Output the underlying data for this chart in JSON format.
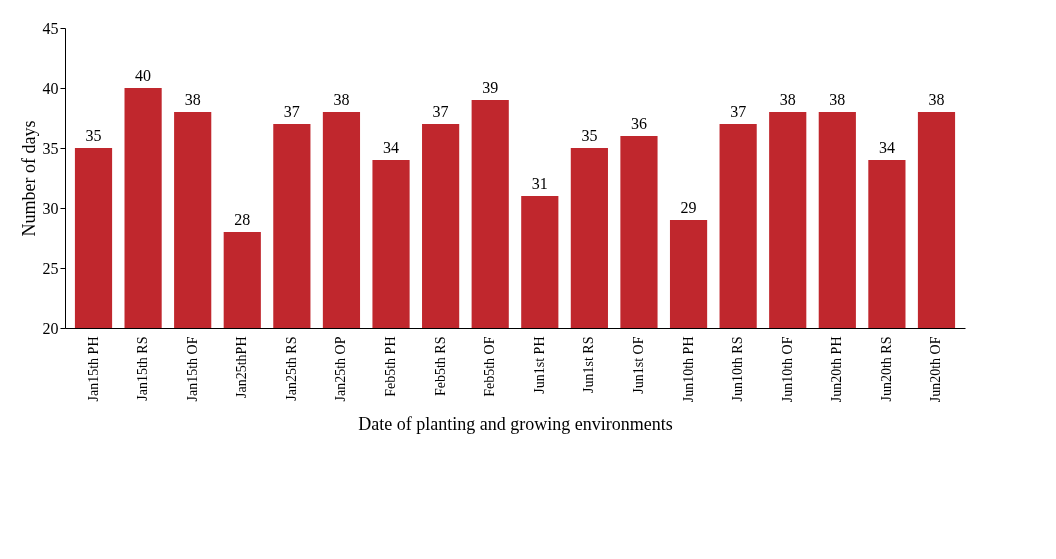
{
  "chart_data": {
    "type": "bar",
    "xlabel": "Date of planting and growing environments",
    "ylabel": "Number of days",
    "categories": [
      "Jan15th PH",
      "Jan15th RS",
      "Jan15th OF",
      "Jan25thPH",
      "Jan25th RS",
      "Jan25th OP",
      "Feb5th PH",
      "Feb5th RS",
      "Feb5th OF",
      "Jun1st PH",
      "Jun1st RS",
      "Jun1st OF",
      "Jun10th PH",
      "Jun10th RS",
      "Jun10th OF",
      "Jun20th PH",
      "Jun20th RS",
      "Jun20th OF"
    ],
    "values": [
      35,
      40,
      38,
      28,
      37,
      38,
      34,
      37,
      39,
      31,
      35,
      36,
      29,
      37,
      38,
      38,
      34,
      38
    ],
    "color": "#c0272d",
    "ylim": [
      20,
      45
    ],
    "yticks": [
      20,
      25,
      30,
      35,
      40,
      45
    ],
    "data_labels": true,
    "grid": false
  }
}
